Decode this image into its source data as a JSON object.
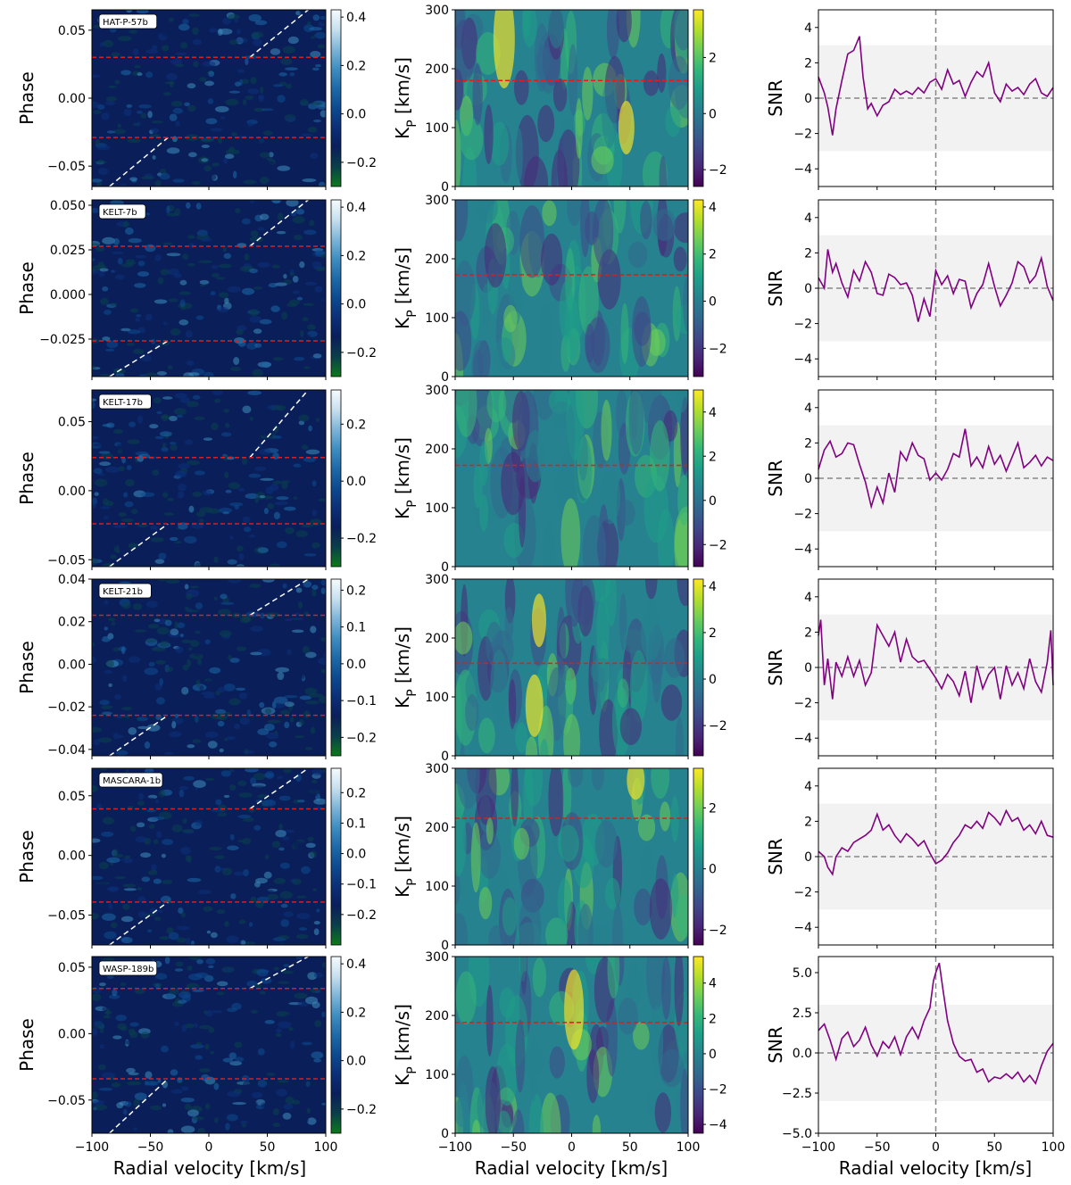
{
  "chart_data": {
    "type": "heatmap",
    "xlabel": "Radial velocity [km/s]",
    "x_ticks": [
      -100,
      -50,
      0,
      50,
      100
    ],
    "xlim": [
      -100,
      100
    ],
    "columns": [
      {
        "kind": "heatmap",
        "ylabel": "Phase",
        "colormap": "ocean-blue"
      },
      {
        "kind": "heatmap",
        "ylabel": "K",
        "ylabel_sub": "P",
        "ylabel_unit": " [km/s]",
        "colormap": "viridis",
        "ylim": [
          0,
          300
        ],
        "y_ticks": [
          0,
          100,
          200,
          300
        ]
      },
      {
        "kind": "line",
        "ylabel": "SNR",
        "line_color": "#800080",
        "band": [
          -3,
          3
        ]
      }
    ],
    "rows": [
      {
        "planet": "HAT-P-57b",
        "phase": {
          "ylim": [
            -0.065,
            0.065
          ],
          "y_ticks": [
            -0.05,
            0.0,
            0.05
          ],
          "y_tick_labels": [
            "−0.05",
            "0.00",
            "0.05"
          ],
          "transit": [
            -0.029,
            0.03
          ],
          "cbar_ticks": [
            -0.2,
            0.0,
            0.2,
            0.4
          ],
          "cbar_tick_labels": [
            "−0.2",
            "0.0",
            "0.2",
            "0.4"
          ],
          "cbar_range": [
            -0.3,
            0.43
          ]
        },
        "kp": {
          "kp_line": 180,
          "cbar_ticks": [
            -2,
            0,
            2
          ],
          "cbar_tick_labels": [
            "−2",
            "0",
            "2"
          ],
          "cbar_range": [
            -2.6,
            3.7
          ]
        },
        "snr": {
          "ylim": [
            -5,
            5
          ],
          "y_ticks": [
            -4,
            -2,
            0,
            2,
            4
          ],
          "y_tick_labels": [
            "−4",
            "−2",
            "0",
            "2",
            "4"
          ],
          "x": [
            -100,
            -95,
            -92,
            -88,
            -85,
            -80,
            -75,
            -70,
            -65,
            -62,
            -58,
            -55,
            -50,
            -45,
            -40,
            -35,
            -30,
            -25,
            -20,
            -15,
            -10,
            -5,
            0,
            5,
            10,
            15,
            20,
            25,
            30,
            35,
            40,
            45,
            50,
            55,
            60,
            65,
            70,
            75,
            80,
            85,
            90,
            95,
            100
          ],
          "y": [
            1.2,
            0.3,
            -0.5,
            -2.1,
            -0.6,
            1.0,
            2.5,
            2.7,
            3.5,
            1.2,
            -0.6,
            -0.3,
            -1.0,
            -0.4,
            -0.2,
            0.5,
            0.2,
            0.4,
            0.2,
            0.6,
            0.3,
            0.9,
            1.1,
            0.5,
            1.6,
            0.8,
            1.0,
            0.1,
            0.9,
            1.5,
            1.2,
            2.0,
            0.3,
            -0.2,
            0.8,
            0.4,
            0.6,
            0.2,
            0.8,
            1.1,
            0.3,
            0.1,
            0.6
          ]
        }
      },
      {
        "planet": "KELT-7b",
        "phase": {
          "ylim": [
            -0.046,
            0.053
          ],
          "y_ticks": [
            -0.025,
            0.0,
            0.025,
            0.05
          ],
          "y_tick_labels": [
            "−0.025",
            "0.000",
            "0.025",
            "0.050"
          ],
          "transit": [
            -0.026,
            0.027
          ],
          "cbar_ticks": [
            -0.2,
            0.0,
            0.2,
            0.4
          ],
          "cbar_tick_labels": [
            "−0.2",
            "0.0",
            "0.2",
            "0.4"
          ],
          "cbar_range": [
            -0.3,
            0.43
          ]
        },
        "kp": {
          "kp_line": 173,
          "cbar_ticks": [
            -2,
            0,
            2,
            4
          ],
          "cbar_tick_labels": [
            "−2",
            "0",
            "2",
            "4"
          ],
          "cbar_range": [
            -3.2,
            4.3
          ]
        },
        "snr": {
          "ylim": [
            -5,
            5
          ],
          "y_ticks": [
            -4,
            -2,
            0,
            2,
            4
          ],
          "y_tick_labels": [
            "−4",
            "−2",
            "0",
            "2",
            "4"
          ],
          "x": [
            -100,
            -95,
            -92,
            -88,
            -85,
            -80,
            -75,
            -70,
            -65,
            -60,
            -55,
            -50,
            -45,
            -40,
            -35,
            -30,
            -25,
            -20,
            -15,
            -10,
            -5,
            0,
            5,
            10,
            15,
            20,
            25,
            30,
            35,
            40,
            45,
            50,
            55,
            60,
            65,
            70,
            75,
            80,
            85,
            90,
            95,
            100
          ],
          "y": [
            0.6,
            0.0,
            2.2,
            0.9,
            1.4,
            0.3,
            -0.5,
            1.0,
            0.4,
            1.5,
            0.9,
            -0.3,
            -0.4,
            0.8,
            0.6,
            0.2,
            0.3,
            -0.4,
            -1.9,
            -0.6,
            -1.6,
            1.0,
            0.2,
            0.7,
            -0.3,
            0.5,
            0.4,
            -1.1,
            -0.3,
            0.2,
            1.4,
            0.1,
            -1.0,
            -0.4,
            0.3,
            1.5,
            1.2,
            0.3,
            0.7,
            1.7,
            0.1,
            -0.7
          ]
        }
      },
      {
        "planet": "KELT-17b",
        "phase": {
          "ylim": [
            -0.055,
            0.073
          ],
          "y_ticks": [
            -0.05,
            0.0,
            0.05
          ],
          "y_tick_labels": [
            "−0.05",
            "0.00",
            "0.05"
          ],
          "transit": [
            -0.024,
            0.024
          ],
          "cbar_ticks": [
            -0.2,
            0.0,
            0.2
          ],
          "cbar_tick_labels": [
            "−0.2",
            "0.0",
            "0.2"
          ],
          "cbar_range": [
            -0.3,
            0.32
          ]
        },
        "kp": {
          "kp_line": 172,
          "cbar_ticks": [
            -2,
            0,
            2,
            4
          ],
          "cbar_tick_labels": [
            "−2",
            "0",
            "2",
            "4"
          ],
          "cbar_range": [
            -3.0,
            5.0
          ]
        },
        "snr": {
          "ylim": [
            -5,
            5
          ],
          "y_ticks": [
            -4,
            -2,
            0,
            2,
            4
          ],
          "y_tick_labels": [
            "−4",
            "−2",
            "0",
            "2",
            "4"
          ],
          "x": [
            -100,
            -95,
            -90,
            -85,
            -80,
            -75,
            -70,
            -65,
            -60,
            -55,
            -50,
            -45,
            -40,
            -35,
            -30,
            -25,
            -20,
            -15,
            -10,
            -5,
            0,
            5,
            10,
            15,
            20,
            25,
            30,
            35,
            40,
            45,
            50,
            55,
            60,
            65,
            70,
            75,
            80,
            85,
            90,
            95,
            100
          ],
          "y": [
            0.5,
            1.6,
            2.1,
            1.2,
            1.4,
            2.0,
            1.9,
            0.8,
            -0.2,
            -1.6,
            -0.5,
            -1.4,
            0.3,
            -0.8,
            1.5,
            1.0,
            2.0,
            1.3,
            1.1,
            -0.1,
            0.3,
            -0.1,
            0.5,
            1.4,
            1.2,
            2.8,
            0.7,
            1.2,
            0.6,
            1.8,
            0.8,
            1.3,
            0.4,
            1.2,
            2.0,
            0.6,
            0.9,
            1.3,
            0.7,
            1.2,
            1.0
          ]
        }
      },
      {
        "planet": "KELT-21b",
        "phase": {
          "ylim": [
            -0.043,
            0.04
          ],
          "y_ticks": [
            -0.04,
            -0.02,
            0.0,
            0.02,
            0.04
          ],
          "y_tick_labels": [
            "−0.04",
            "−0.02",
            "0.00",
            "0.02",
            "0.04"
          ],
          "transit": [
            -0.024,
            0.023
          ],
          "cbar_ticks": [
            -0.2,
            -0.1,
            0.0,
            0.1,
            0.2
          ],
          "cbar_tick_labels": [
            "−0.2",
            "−0.1",
            "0.0",
            "0.1",
            "0.2"
          ],
          "cbar_range": [
            -0.25,
            0.23
          ]
        },
        "kp": {
          "kp_line": 157,
          "cbar_ticks": [
            -2,
            0,
            2,
            4
          ],
          "cbar_tick_labels": [
            "−2",
            "0",
            "2",
            "4"
          ],
          "cbar_range": [
            -3.3,
            4.3
          ]
        },
        "snr": {
          "ylim": [
            -5,
            5
          ],
          "y_ticks": [
            -4,
            -2,
            0,
            2,
            4
          ],
          "y_tick_labels": [
            "−4",
            "−2",
            "0",
            "2",
            "4"
          ],
          "x": [
            -100,
            -98,
            -95,
            -92,
            -88,
            -85,
            -80,
            -75,
            -70,
            -65,
            -60,
            -55,
            -50,
            -45,
            -40,
            -35,
            -30,
            -25,
            -20,
            -15,
            -10,
            -5,
            0,
            5,
            10,
            15,
            20,
            25,
            30,
            35,
            40,
            45,
            50,
            55,
            60,
            65,
            70,
            75,
            80,
            85,
            90,
            95,
            98,
            100
          ],
          "y": [
            1.8,
            2.7,
            -1.0,
            0.5,
            -1.8,
            0.3,
            -0.5,
            0.6,
            -0.5,
            0.4,
            -1.0,
            -0.3,
            2.4,
            1.8,
            1.2,
            2.0,
            0.3,
            1.6,
            0.6,
            0.3,
            0.4,
            -0.1,
            -0.6,
            -1.2,
            -0.4,
            -0.8,
            -1.6,
            -0.2,
            -2.0,
            0.1,
            -1.2,
            -0.4,
            0.0,
            -1.8,
            0.1,
            -1.0,
            -0.3,
            -1.2,
            0.5,
            -0.8,
            -1.4,
            0.3,
            2.1,
            -1.0
          ]
        }
      },
      {
        "planet": "MASCARA-1b",
        "phase": {
          "ylim": [
            -0.075,
            0.073
          ],
          "y_ticks": [
            -0.05,
            0.0,
            0.05
          ],
          "y_tick_labels": [
            "−0.05",
            "0.00",
            "0.05"
          ],
          "transit": [
            -0.039,
            0.039
          ],
          "cbar_ticks": [
            -0.2,
            -0.1,
            0.0,
            0.1,
            0.2
          ],
          "cbar_tick_labels": [
            "−0.2",
            "−0.1",
            "0.0",
            "0.1",
            "0.2"
          ],
          "cbar_range": [
            -0.3,
            0.28
          ]
        },
        "kp": {
          "kp_line": 215,
          "cbar_ticks": [
            -2,
            0,
            2
          ],
          "cbar_tick_labels": [
            "−2",
            "0",
            "2"
          ],
          "cbar_range": [
            -2.5,
            3.3
          ]
        },
        "snr": {
          "ylim": [
            -5,
            5
          ],
          "y_ticks": [
            -4,
            -2,
            0,
            2,
            4
          ],
          "y_tick_labels": [
            "−4",
            "−2",
            "0",
            "2",
            "4"
          ],
          "x": [
            -100,
            -95,
            -92,
            -88,
            -85,
            -80,
            -75,
            -70,
            -65,
            -60,
            -55,
            -50,
            -45,
            -40,
            -35,
            -30,
            -25,
            -20,
            -15,
            -10,
            -5,
            0,
            5,
            10,
            15,
            20,
            25,
            30,
            35,
            40,
            45,
            50,
            55,
            60,
            65,
            70,
            75,
            80,
            85,
            90,
            95,
            100
          ],
          "y": [
            0.3,
            0.0,
            -0.6,
            -1.0,
            0.0,
            0.5,
            0.3,
            0.8,
            1.0,
            1.2,
            1.5,
            2.4,
            1.5,
            1.8,
            1.2,
            0.8,
            1.3,
            1.0,
            0.6,
            0.9,
            0.2,
            -0.4,
            -0.2,
            0.2,
            0.8,
            1.2,
            1.8,
            1.6,
            2.0,
            1.6,
            2.5,
            2.2,
            1.8,
            2.6,
            2.0,
            2.2,
            1.5,
            1.8,
            1.3,
            2.0,
            1.2,
            1.1
          ]
        }
      },
      {
        "planet": "WASP-189b",
        "phase": {
          "ylim": [
            -0.075,
            0.058
          ],
          "y_ticks": [
            -0.05,
            0.0,
            0.05
          ],
          "y_tick_labels": [
            "−0.05",
            "0.00",
            "0.05"
          ],
          "transit": [
            -0.034,
            0.034
          ],
          "cbar_ticks": [
            -0.2,
            0.0,
            0.2,
            0.4
          ],
          "cbar_tick_labels": [
            "−0.2",
            "0.0",
            "0.2",
            "0.4"
          ],
          "cbar_range": [
            -0.3,
            0.43
          ]
        },
        "kp": {
          "kp_line": 188,
          "cbar_ticks": [
            -4,
            -2,
            0,
            2,
            4
          ],
          "cbar_tick_labels": [
            "−4",
            "−2",
            "0",
            "2",
            "4"
          ],
          "cbar_range": [
            -4.5,
            5.5
          ]
        },
        "snr": {
          "ylim": [
            -5,
            6
          ],
          "y_ticks": [
            -5.0,
            -2.5,
            0.0,
            2.5,
            5.0
          ],
          "y_tick_labels": [
            "−5.0",
            "−2.5",
            "0.0",
            "2.5",
            "5.0"
          ],
          "x": [
            -100,
            -95,
            -90,
            -85,
            -80,
            -75,
            -70,
            -65,
            -60,
            -55,
            -50,
            -45,
            -40,
            -35,
            -30,
            -25,
            -20,
            -15,
            -10,
            -5,
            -2,
            0,
            3,
            6,
            10,
            15,
            20,
            25,
            30,
            35,
            40,
            45,
            50,
            55,
            60,
            65,
            70,
            75,
            80,
            85,
            90,
            95,
            100
          ],
          "y": [
            1.4,
            1.8,
            0.8,
            -0.4,
            0.9,
            1.3,
            0.4,
            0.8,
            1.6,
            0.5,
            -0.2,
            0.7,
            0.3,
            1.0,
            -0.1,
            1.0,
            1.6,
            0.9,
            2.0,
            2.8,
            4.5,
            5.0,
            5.6,
            4.0,
            2.0,
            0.6,
            -0.2,
            -0.5,
            -0.4,
            -1.2,
            -1.0,
            -1.8,
            -1.5,
            -1.6,
            -1.3,
            -1.6,
            -1.2,
            -1.8,
            -1.4,
            -1.9,
            -0.8,
            0.1,
            0.6
          ]
        }
      }
    ]
  }
}
